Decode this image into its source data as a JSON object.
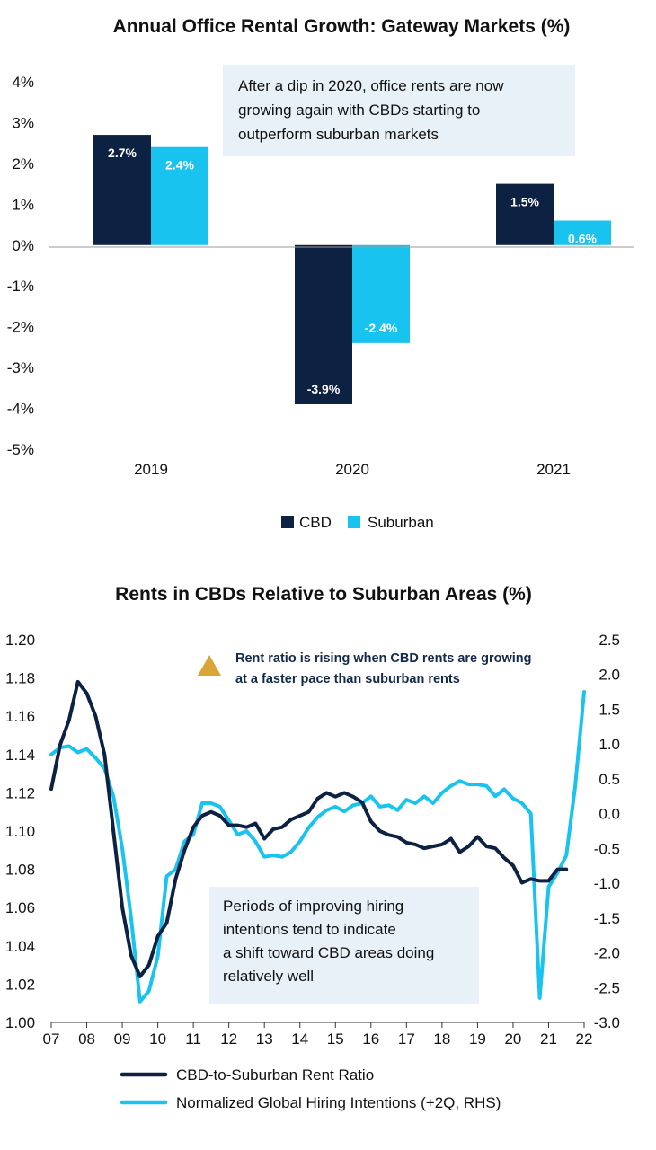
{
  "colors": {
    "cbd": "#0d2142",
    "suburban": "#19c3f0",
    "note_bg": "#e8f1f7",
    "marker": "#d9a535"
  },
  "chart_data": [
    {
      "type": "bar",
      "title": "Annual Office Rental Growth: Gateway Markets (%)",
      "categories": [
        "2019",
        "2020",
        "2021"
      ],
      "series": [
        {
          "name": "CBD",
          "values": [
            2.7,
            -3.9,
            1.5
          ],
          "labels": [
            "2.7%",
            "-3.9%",
            "1.5%"
          ]
        },
        {
          "name": "Suburban",
          "values": [
            2.4,
            -2.4,
            0.6
          ],
          "labels": [
            "2.4%",
            "-2.4%",
            "0.6%"
          ]
        }
      ],
      "ylim": [
        -5,
        4
      ],
      "yticks": [
        4,
        3,
        2,
        1,
        0,
        -1,
        -2,
        -3,
        -4,
        -5
      ],
      "ytick_labels": [
        "4%",
        "3%",
        "2%",
        "1%",
        "0%",
        "-1%",
        "-2%",
        "-3%",
        "-4%",
        "-5%"
      ],
      "annotation": [
        "After a dip in 2020, office rents are now",
        "growing again with CBDs starting to",
        "outperform suburban markets"
      ],
      "legend_position": "bottom"
    },
    {
      "type": "line",
      "title": "Rents in CBDs Relative to Suburban Areas (%)",
      "xlim": [
        2007,
        2022
      ],
      "xticks": [
        2007,
        2008,
        2009,
        2010,
        2011,
        2012,
        2013,
        2014,
        2015,
        2016,
        2017,
        2018,
        2019,
        2020,
        2021,
        2022
      ],
      "xtick_labels": [
        "07",
        "08",
        "09",
        "10",
        "11",
        "12",
        "13",
        "14",
        "15",
        "16",
        "17",
        "18",
        "19",
        "20",
        "21",
        "22"
      ],
      "ylim_left": [
        1.0,
        1.2
      ],
      "yticks_left": [
        "1.20",
        "1.18",
        "1.16",
        "1.14",
        "1.12",
        "1.10",
        "1.08",
        "1.06",
        "1.04",
        "1.02",
        "1.00"
      ],
      "ylim_right": [
        -3.0,
        2.5
      ],
      "yticks_right": [
        "2.5",
        "2.0",
        "1.5",
        "1.0",
        "0.5",
        "0.0",
        "-0.5",
        "-1.0",
        "-1.5",
        "-2.0",
        "-2.5",
        "-3.0"
      ],
      "annotation_top": [
        "Rent ratio is rising when CBD rents are growing",
        "at a faster pace than suburban rents"
      ],
      "annotation_bottom": [
        "Periods of improving hiring",
        "intentions tend to indicate",
        "a shift toward CBD areas doing",
        "relatively well"
      ],
      "legend_position": "bottom",
      "series": [
        {
          "name": "CBD-to-Suburban Rent Ratio",
          "axis": "left",
          "x": [
            2007.0,
            2007.25,
            2007.5,
            2007.75,
            2008.0,
            2008.25,
            2008.5,
            2008.75,
            2009.0,
            2009.25,
            2009.5,
            2009.75,
            2010.0,
            2010.25,
            2010.5,
            2010.75,
            2011.0,
            2011.25,
            2011.5,
            2011.75,
            2012.0,
            2012.25,
            2012.5,
            2012.75,
            2013.0,
            2013.25,
            2013.5,
            2013.75,
            2014.0,
            2014.25,
            2014.5,
            2014.75,
            2015.0,
            2015.25,
            2015.5,
            2015.75,
            2016.0,
            2016.25,
            2016.5,
            2016.75,
            2017.0,
            2017.25,
            2017.5,
            2017.75,
            2018.0,
            2018.25,
            2018.5,
            2018.75,
            2019.0,
            2019.25,
            2019.5,
            2019.75,
            2020.0,
            2020.25,
            2020.5,
            2020.75,
            2021.0,
            2021.25,
            2021.5
          ],
          "values": [
            1.122,
            1.145,
            1.158,
            1.178,
            1.172,
            1.16,
            1.14,
            1.1,
            1.06,
            1.035,
            1.024,
            1.03,
            1.045,
            1.052,
            1.075,
            1.09,
            1.102,
            1.108,
            1.11,
            1.108,
            1.103,
            1.103,
            1.102,
            1.104,
            1.096,
            1.101,
            1.102,
            1.106,
            1.108,
            1.11,
            1.117,
            1.12,
            1.118,
            1.12,
            1.118,
            1.115,
            1.105,
            1.1,
            1.098,
            1.097,
            1.094,
            1.093,
            1.091,
            1.092,
            1.093,
            1.096,
            1.089,
            1.092,
            1.097,
            1.092,
            1.091,
            1.086,
            1.082,
            1.073,
            1.075,
            1.074,
            1.074,
            1.08,
            1.08
          ]
        },
        {
          "name": "Normalized Global Hiring Intentions (+2Q, RHS)",
          "axis": "right",
          "x": [
            2007.0,
            2007.25,
            2007.5,
            2007.75,
            2008.0,
            2008.25,
            2008.5,
            2008.75,
            2009.0,
            2009.25,
            2009.5,
            2009.75,
            2010.0,
            2010.25,
            2010.5,
            2010.75,
            2011.0,
            2011.25,
            2011.5,
            2011.75,
            2012.0,
            2012.25,
            2012.5,
            2012.75,
            2013.0,
            2013.25,
            2013.5,
            2013.75,
            2014.0,
            2014.25,
            2014.5,
            2014.75,
            2015.0,
            2015.25,
            2015.5,
            2015.75,
            2016.0,
            2016.25,
            2016.5,
            2016.75,
            2017.0,
            2017.25,
            2017.5,
            2017.75,
            2018.0,
            2018.25,
            2018.5,
            2018.75,
            2019.0,
            2019.25,
            2019.5,
            2019.75,
            2020.0,
            2020.25,
            2020.5,
            2020.75,
            2021.0,
            2021.25,
            2021.5,
            2021.75,
            2022.0
          ],
          "values": [
            0.85,
            0.95,
            0.97,
            0.88,
            0.93,
            0.8,
            0.65,
            0.25,
            -0.5,
            -1.5,
            -2.7,
            -2.55,
            -2.05,
            -0.9,
            -0.8,
            -0.4,
            -0.3,
            0.15,
            0.15,
            0.1,
            -0.1,
            -0.3,
            -0.25,
            -0.4,
            -0.62,
            -0.6,
            -0.62,
            -0.55,
            -0.4,
            -0.2,
            -0.05,
            0.05,
            0.1,
            0.03,
            0.12,
            0.15,
            0.25,
            0.1,
            0.12,
            0.05,
            0.2,
            0.15,
            0.25,
            0.15,
            0.3,
            0.4,
            0.47,
            0.42,
            0.42,
            0.4,
            0.25,
            0.35,
            0.22,
            0.15,
            0.0,
            -2.65,
            -1.05,
            -0.85,
            -0.6,
            0.4,
            1.75
          ]
        }
      ]
    }
  ]
}
